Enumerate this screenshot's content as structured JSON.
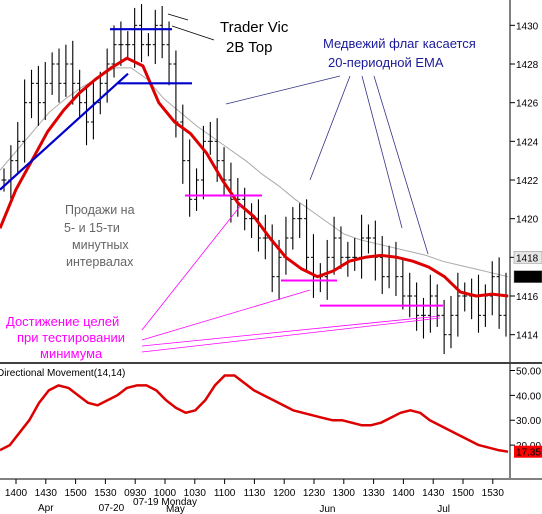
{
  "chart_data": [
    {
      "type": "ohlc-bar",
      "subtype": "intraday price bars with moving averages",
      "ylim": [
        1413,
        1431
      ],
      "y_ticks": [
        "1414",
        "1416",
        "1418",
        "1420",
        "1422",
        "1424",
        "1426",
        "1428",
        "1430"
      ],
      "last_value_labels": [
        {
          "value": "1418",
          "color": "#e6e6e6"
        },
        {
          "value": "1417",
          "color": "#000000"
        }
      ],
      "grid": false,
      "close_approx": [
        1422,
        1423,
        1424,
        1426,
        1427,
        1426,
        1427,
        1428,
        1427,
        1428,
        1427,
        1426,
        1425,
        1426,
        1427,
        1428,
        1429,
        1429,
        1429,
        1430,
        1429,
        1429,
        1430,
        1429,
        1428,
        1425,
        1423,
        1421,
        1422,
        1424,
        1424,
        1423,
        1422,
        1421,
        1421,
        1420,
        1420,
        1419,
        1419,
        1417,
        1418,
        1419,
        1420,
        1420,
        1418,
        1417,
        1417,
        1418,
        1419,
        1418,
        1418,
        1418,
        1419,
        1419,
        1418,
        1417,
        1418,
        1417,
        1416,
        1416,
        1415,
        1415,
        1416,
        1415,
        1414,
        1415,
        1416,
        1416,
        1416,
        1415,
        1416,
        1417,
        1415,
        1416
      ],
      "series": [
        {
          "values": [
            1422.5,
            1423.5,
            1424.5,
            1425.5,
            1426.2,
            1426.8,
            1427.3,
            1427.8,
            1427.8,
            1427.2,
            1426.2,
            1425.5,
            1424.8,
            1424.2,
            1423.6,
            1423.0,
            1422.3,
            1421.7,
            1421.0,
            1420.4,
            1419.8,
            1419.2,
            1418.9,
            1418.7,
            1418.5,
            1418.3,
            1418.1,
            1417.8,
            1417.6,
            1417.4,
            1417.2,
            1417.0
          ]
        },
        {
          "values": [
            1419.5,
            1421.5,
            1423.0,
            1424.5,
            1425.6,
            1426.5,
            1427.2,
            1427.8,
            1428.3,
            1427.9,
            1426.0,
            1425.0,
            1424.4,
            1423.4,
            1422.0,
            1420.8,
            1420.1,
            1419.0,
            1418.0,
            1417.4,
            1417.0,
            1417.3,
            1417.8,
            1418.0,
            1418.1,
            1418.0,
            1417.8,
            1417.5,
            1417.0,
            1416.2,
            1416.0,
            1416.1,
            1416.0
          ]
        }
      ],
      "annotation_lines": [
        {
          "from": {
            "x": "1400",
            "y": 1421.5
          },
          "to": {
            "x": "1530",
            "y": 1427.5
          },
          "color": "#0000cc"
        },
        {
          "from": {
            "x": "1530",
            "y": 1429.8
          },
          "to": {
            "x": "0930",
            "y": 1429.8
          },
          "color": "#0000cc"
        },
        {
          "from": {
            "x": "1530",
            "y": 1427.0
          },
          "to": {
            "x": "1000",
            "y": 1427.0
          },
          "color": "#0000cc"
        },
        {
          "from": {
            "x": "1000",
            "y": 1421.2
          },
          "to": {
            "x": "1100",
            "y": 1421.2
          },
          "color": "#ff00ff"
        },
        {
          "from": {
            "x": "1200",
            "y": 1416.8
          },
          "to": {
            "x": "1230",
            "y": 1416.8
          },
          "color": "#ff00ff"
        },
        {
          "from": {
            "x": "1230",
            "y": 1415.5
          },
          "to": {
            "x": "1400",
            "y": 1415.5
          },
          "color": "#ff00ff"
        }
      ]
    },
    {
      "type": "line",
      "ylim": [
        10,
        51
      ],
      "y_ticks": [
        "20.00",
        "30.00",
        "40.00",
        "50.00"
      ],
      "last_value_labels": [
        {
          "value": "17.35",
          "color": "#ff0000"
        }
      ],
      "series": [
        {
          "name": "Directional Movement(14,14)",
          "color": "#dd0000",
          "values": [
            18,
            20,
            25,
            30,
            37,
            42,
            44,
            43,
            40,
            37,
            36,
            38,
            40,
            43,
            44,
            44,
            42,
            38,
            35,
            33,
            34,
            38,
            44,
            48,
            48,
            45,
            42,
            40,
            38,
            36,
            34,
            33,
            32,
            31,
            30,
            30,
            29,
            28,
            28,
            29,
            31,
            33,
            34,
            33,
            30,
            28,
            26,
            24,
            22,
            20,
            19,
            18,
            17.35
          ]
        }
      ]
    }
  ],
  "x_ticks": [
    "1400",
    "1430",
    "1500",
    "1530",
    "0930",
    "1000",
    "1030",
    "1100",
    "1130",
    "1200",
    "1230",
    "1300",
    "1330",
    "1400",
    "1430",
    "1500",
    "1530"
  ],
  "x_sub_labels": [
    {
      "text": "Apr",
      "after_tick": "1400"
    },
    {
      "text": "07-19 Monday",
      "after_tick": "1000"
    },
    {
      "text": "May",
      "after_tick": "1000"
    },
    {
      "text": "Jun",
      "after_tick": "1230"
    },
    {
      "text": "Jul",
      "after_tick": "1430"
    },
    {
      "text": "07-20",
      "after_tick": "1530"
    }
  ],
  "annotations": {
    "top_label_line1": "Trader Vic",
    "top_label_line2": "2B Top",
    "flag_line1": "Медвежий флаг касается",
    "flag_line2": "20-периодной EMA",
    "sell_line1": "Продажи на",
    "sell_line2": "5- и 15-ти",
    "sell_line3": "минутных",
    "sell_line4": "интервалах",
    "target_line1": "Достижение целей",
    "target_line2": "при тестировании",
    "target_line3": "минимума"
  },
  "colors": {
    "bars": "#000000",
    "ema20": "#dd0000",
    "slow_ma": "#aaaaaa",
    "trend_line": "#0000cc",
    "target_line": "#ff00ff",
    "flag_text": "#1a1a99",
    "sell_text": "#666666",
    "target_text": "#ff00ff",
    "flag_pointer": "#333388"
  }
}
